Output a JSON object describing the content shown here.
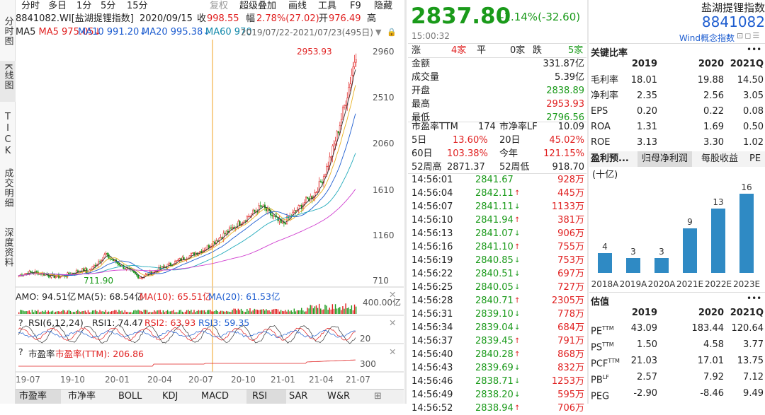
{
  "sidebar": {
    "items": [
      "分时图",
      "K线图",
      "TICK",
      "成交明细",
      "深度资料"
    ]
  },
  "toolbar": {
    "items": [
      "分时",
      "多日",
      "1分",
      "5分",
      "15分",
      "复权",
      "超级叠加",
      "画线",
      "工具",
      "F9",
      "隐藏"
    ]
  },
  "info": {
    "code_name": "8841082.WI[盐湖提锂指数]",
    "date": "2020/09/15",
    "close_label": "收",
    "close": "998.55",
    "amp_label": "幅",
    "amp": "2.78%(27.02)",
    "open_label": "开",
    "open": "976.49",
    "high_label": "高"
  },
  "ma": {
    "ma5": "MA5 975.05↓",
    "ma10": "MA10 991.20↓",
    "ma20": "MA20 995.38↓",
    "ma60": "MA60 970",
    "range": "2019/07/22-2021/07/23(495日)"
  },
  "chart": {
    "yticks": [
      "2960",
      "2510",
      "2060",
      "1610",
      "1160",
      "710"
    ],
    "max_label": "2953.93",
    "min_label": "711.90",
    "amo": {
      "label": "AMO: 94.51亿",
      "ma5": "MA(5): 68.54亿",
      "ma10": "MA(10): 65.51亿",
      "ma20": "MA(20): 61.53亿",
      "ytick": "400.00亿"
    },
    "rsi": {
      "q": "?",
      "label": "RSI(6,12,24)",
      "rsi1": "RSI1: 74.47",
      "rsi2": "RSI2: 63.93",
      "rsi3": "RSI3: 59.35",
      "ytick": "20"
    },
    "pe": {
      "q": "?",
      "label": "市盈率",
      "val": "市盈率(TTM): 206.86",
      "ytick": "300"
    },
    "xticks": [
      "19-07",
      "19-10",
      "20-01",
      "20-04",
      "20-07",
      "20-10",
      "21-01",
      "21-04",
      "21-07"
    ]
  },
  "bottom_tabs": [
    "市盈率",
    "市净率",
    "BOLL",
    "KDJ",
    "MACD",
    "RSI",
    "SAR",
    "W&R"
  ],
  "quote": {
    "price": "2837.80",
    "change": "-1.14%(-32.60)",
    "time": "15:00:32",
    "name": "盐湖提锂指数",
    "code": "8841082",
    "wind_link": "Wind概念指数",
    "breadth": {
      "up_label": "涨",
      "up": "4家",
      "flat_label": "平",
      "flat": "0家",
      "down_label": "跌",
      "down": "5家"
    },
    "rows": [
      [
        "金额",
        "331.87亿"
      ],
      [
        "成交量",
        "5.39亿"
      ],
      [
        "开盘",
        "2838.89"
      ],
      [
        "最高",
        "2953.93"
      ],
      [
        "最低",
        "2796.56"
      ]
    ],
    "pe": {
      "pe_label": "市盈率TTM",
      "pe": "174",
      "pb_label": "市净率LF",
      "pb": "10.09"
    },
    "perf": [
      [
        "5日",
        "13.60%",
        "20日",
        "45.02%"
      ],
      [
        "60日",
        "103.38%",
        "今年",
        "121.15%"
      ],
      [
        "52周高",
        "2871.37",
        "52周低",
        "918.70"
      ]
    ],
    "ticks": [
      [
        "14:56:01",
        "2841.67",
        "",
        "928万"
      ],
      [
        "14:56:04",
        "2842.11",
        "up",
        "445万"
      ],
      [
        "14:56:07",
        "2841.11",
        "down",
        "1133万"
      ],
      [
        "14:56:10",
        "2841.94",
        "up",
        "381万"
      ],
      [
        "14:56:13",
        "2841.07",
        "down",
        "906万"
      ],
      [
        "14:56:16",
        "2841.10",
        "up",
        "755万"
      ],
      [
        "14:56:19",
        "2840.85",
        "down",
        "753万"
      ],
      [
        "14:56:22",
        "2840.51",
        "down",
        "697万"
      ],
      [
        "14:56:25",
        "2840.05",
        "down",
        "727万"
      ],
      [
        "14:56:28",
        "2840.71",
        "up",
        "2305万"
      ],
      [
        "14:56:31",
        "2839.10",
        "down",
        "778万"
      ],
      [
        "14:56:34",
        "2839.04",
        "down",
        "684万"
      ],
      [
        "14:56:37",
        "2839.45",
        "up",
        "791万"
      ],
      [
        "14:56:40",
        "2840.28",
        "up",
        "868万"
      ],
      [
        "14:56:43",
        "2839.69",
        "down",
        "832万"
      ],
      [
        "14:56:46",
        "2838.71",
        "down",
        "1253万"
      ],
      [
        "14:56:49",
        "2838.20",
        "down",
        "595万"
      ],
      [
        "14:56:52",
        "2838.94",
        "up",
        "706万"
      ]
    ]
  },
  "ratios": {
    "title": "关键比率",
    "more": "•••",
    "years": [
      "2019",
      "2020",
      "2021Q"
    ],
    "rows": [
      [
        "毛利率",
        "18.01",
        "19.88",
        "14.50"
      ],
      [
        "净利率",
        "2.35",
        "2.56",
        "3.05"
      ],
      [
        "EPS",
        "0.20",
        "0.22",
        "0.08"
      ],
      [
        "ROA",
        "1.31",
        "1.69",
        "0.50"
      ],
      [
        "ROE",
        "3.13",
        "3.30",
        "1.02"
      ]
    ]
  },
  "forecast": {
    "tabs": [
      "盈利预...",
      "归母净利润",
      "每股收益",
      "PE"
    ],
    "unit": "(十亿)"
  },
  "chart_data": {
    "type": "bar",
    "categories": [
      "2018A",
      "2019A",
      "2020A",
      "2021E",
      "2022E",
      "2023E"
    ],
    "values": [
      4,
      3,
      3,
      9,
      13,
      16
    ]
  },
  "valuation": {
    "title": "估值",
    "more": "•••",
    "years": [
      "2019",
      "2020",
      "2021Q"
    ],
    "rows": [
      [
        "PE",
        "TTM",
        "43.09",
        "183.44",
        "120.64"
      ],
      [
        "PS",
        "TTM",
        "1.50",
        "4.58",
        "3.77"
      ],
      [
        "PCF",
        "TTM",
        "21.03",
        "17.01",
        "13.75"
      ],
      [
        "PB",
        "LF",
        "2.57",
        "7.92",
        "7.12"
      ],
      [
        "PEG",
        "",
        "-2.90",
        "-8.46",
        "9.49"
      ]
    ]
  }
}
